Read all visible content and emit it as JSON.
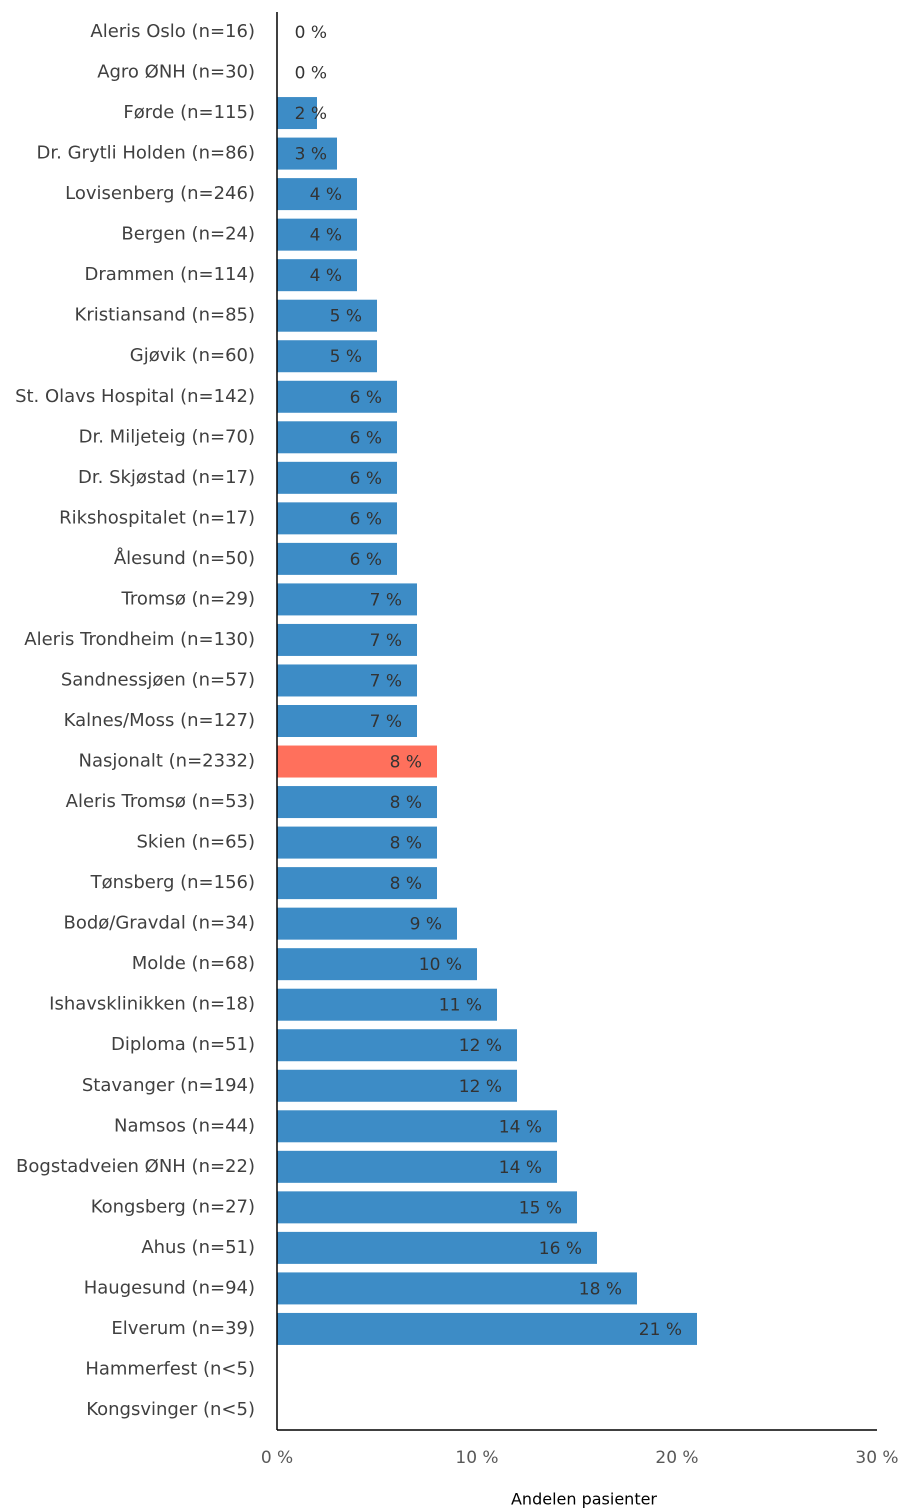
{
  "chart_data": {
    "type": "barh",
    "xlabel": "Andelen pasienter",
    "categories": [
      "Aleris Oslo (n=16)",
      "Agro ØNH (n=30)",
      "Førde (n=115)",
      "Dr. Grytli Holden (n=86)",
      "Lovisenberg (n=246)",
      "Bergen (n=24)",
      "Drammen (n=114)",
      "Kristiansand (n=85)",
      "Gjøvik (n=60)",
      "St. Olavs Hospital (n=142)",
      "Dr. Miljeteig (n=70)",
      "Dr. Skjøstad (n=17)",
      "Rikshospitalet (n=17)",
      "Ålesund (n=50)",
      "Tromsø (n=29)",
      "Aleris Trondheim (n=130)",
      "Sandnessjøen (n=57)",
      "Kalnes/Moss (n=127)",
      "Nasjonalt (n=2332)",
      "Aleris Tromsø (n=53)",
      "Skien (n=65)",
      "Tønsberg (n=156)",
      "Bodø/Gravdal (n=34)",
      "Molde (n=68)",
      "Ishavsklinikken (n=18)",
      "Diploma (n=51)",
      "Stavanger (n=194)",
      "Namsos (n=44)",
      "Bogstadveien ØNH (n=22)",
      "Kongsberg (n=27)",
      "Ahus (n=51)",
      "Haugesund (n=94)",
      "Elverum (n=39)",
      "Hammerfest (n<5)",
      "Kongsvinger (n<5)"
    ],
    "values": [
      0,
      0,
      2,
      3,
      4,
      4,
      4,
      5,
      5,
      6,
      6,
      6,
      6,
      6,
      7,
      7,
      7,
      7,
      8,
      8,
      8,
      8,
      9,
      10,
      11,
      12,
      12,
      14,
      14,
      15,
      16,
      18,
      21,
      null,
      null
    ],
    "value_labels": [
      "0 %",
      "0 %",
      "2 %",
      "3 %",
      "4 %",
      "4 %",
      "4 %",
      "5 %",
      "5 %",
      "6 %",
      "6 %",
      "6 %",
      "6 %",
      "6 %",
      "7 %",
      "7 %",
      "7 %",
      "7 %",
      "8 %",
      "8 %",
      "8 %",
      "8 %",
      "9 %",
      "10 %",
      "11 %",
      "12 %",
      "12 %",
      "14 %",
      "14 %",
      "15 %",
      "16 %",
      "18 %",
      "21 %",
      null,
      null
    ],
    "colors": [
      "#3d8cc6",
      "#3d8cc6",
      "#3d8cc6",
      "#3d8cc6",
      "#3d8cc6",
      "#3d8cc6",
      "#3d8cc6",
      "#3d8cc6",
      "#3d8cc6",
      "#3d8cc6",
      "#3d8cc6",
      "#3d8cc6",
      "#3d8cc6",
      "#3d8cc6",
      "#3d8cc6",
      "#3d8cc6",
      "#3d8cc6",
      "#3d8cc6",
      "#ff705c",
      "#3d8cc6",
      "#3d8cc6",
      "#3d8cc6",
      "#3d8cc6",
      "#3d8cc6",
      "#3d8cc6",
      "#3d8cc6",
      "#3d8cc6",
      "#3d8cc6",
      "#3d8cc6",
      "#3d8cc6",
      "#3d8cc6",
      "#3d8cc6",
      "#3d8cc6",
      "#3d8cc6",
      "#3d8cc6"
    ],
    "xlim": [
      0,
      30
    ],
    "xticks": [
      {
        "value": 0,
        "label": "0 %"
      },
      {
        "value": 10,
        "label": "10 %"
      },
      {
        "value": 20,
        "label": "20 %"
      },
      {
        "value": 30,
        "label": "30 %"
      }
    ],
    "grid": false
  }
}
